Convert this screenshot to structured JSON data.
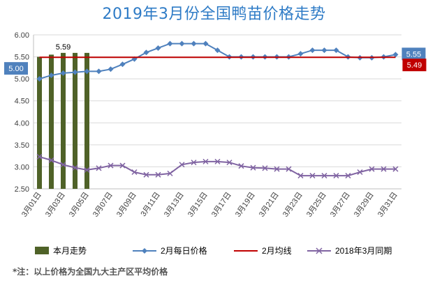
{
  "title": "2019年3月份全国鸭苗价格走势",
  "note": "*注：以上价格为全国九大主产区平均价格",
  "chart_data": {
    "type": "bar+line",
    "ylim": [
      2.5,
      6.0
    ],
    "yticks": [
      "2.50",
      "3.00",
      "3.50",
      "4.00",
      "4.50",
      "5.00",
      "5.50",
      "6.00"
    ],
    "days": [
      1,
      2,
      3,
      4,
      5,
      6,
      7,
      8,
      9,
      10,
      11,
      12,
      13,
      14,
      15,
      16,
      17,
      18,
      19,
      20,
      21,
      22,
      23,
      24,
      25,
      26,
      27,
      28,
      29,
      30,
      31
    ],
    "xtick_labels": [
      "3月01日",
      "3月03日",
      "3月05日",
      "3月07日",
      "3月09日",
      "3月11日",
      "3月13日",
      "3月15日",
      "3月17日",
      "3月19日",
      "3月21日",
      "3月23日",
      "3月25日",
      "3月27日",
      "3月29日",
      "3月31日"
    ],
    "colors": {
      "bar": "#4f6228",
      "feb_daily": "#4f81bd",
      "feb_avg": "#c00000",
      "ref": "#8064a2",
      "grid": "#d9d9d9",
      "axis": "#bfbfbf"
    },
    "series": [
      {
        "name": "本月走势",
        "kind": "bar",
        "values": [
          5.5,
          5.55,
          5.59,
          5.59,
          5.59
        ]
      },
      {
        "name": "2月每日价格",
        "kind": "line",
        "marker": "diamond",
        "values": [
          5.0,
          5.08,
          5.13,
          5.15,
          5.17,
          5.17,
          5.22,
          5.33,
          5.45,
          5.6,
          5.7,
          5.8,
          5.8,
          5.8,
          5.8,
          5.65,
          5.5,
          5.5,
          5.5,
          5.5,
          5.5,
          5.5,
          5.57,
          5.65,
          5.65,
          5.65,
          5.5,
          5.48,
          5.48,
          5.5,
          5.55
        ]
      },
      {
        "name": "2月均线",
        "kind": "line",
        "values": [
          5.49,
          5.49,
          5.49,
          5.49,
          5.49,
          5.49,
          5.49,
          5.49,
          5.49,
          5.49,
          5.49,
          5.49,
          5.49,
          5.49,
          5.49,
          5.49,
          5.49,
          5.49,
          5.49,
          5.49,
          5.49,
          5.49,
          5.49,
          5.49,
          5.49,
          5.49,
          5.49,
          5.49,
          5.49,
          5.49,
          5.49
        ]
      },
      {
        "name": "2018年3月同期",
        "kind": "line",
        "marker": "x",
        "values": [
          3.23,
          3.15,
          3.05,
          2.98,
          2.93,
          2.97,
          3.03,
          3.03,
          2.88,
          2.82,
          2.82,
          2.85,
          3.05,
          3.1,
          3.12,
          3.12,
          3.1,
          3.02,
          2.98,
          2.97,
          2.95,
          2.95,
          2.8,
          2.8,
          2.8,
          2.8,
          2.8,
          2.88,
          2.95,
          2.95,
          2.95
        ]
      }
    ],
    "data_labels": [
      {
        "series": "本月走势",
        "day": 3,
        "text": "5.59"
      },
      {
        "series": "2月每日价格",
        "day": 1,
        "text": "5.00"
      },
      {
        "series": "2月每日价格",
        "day": 31,
        "text": "5.55"
      },
      {
        "series": "2月均线",
        "day": 31,
        "text": "5.49"
      }
    ]
  }
}
